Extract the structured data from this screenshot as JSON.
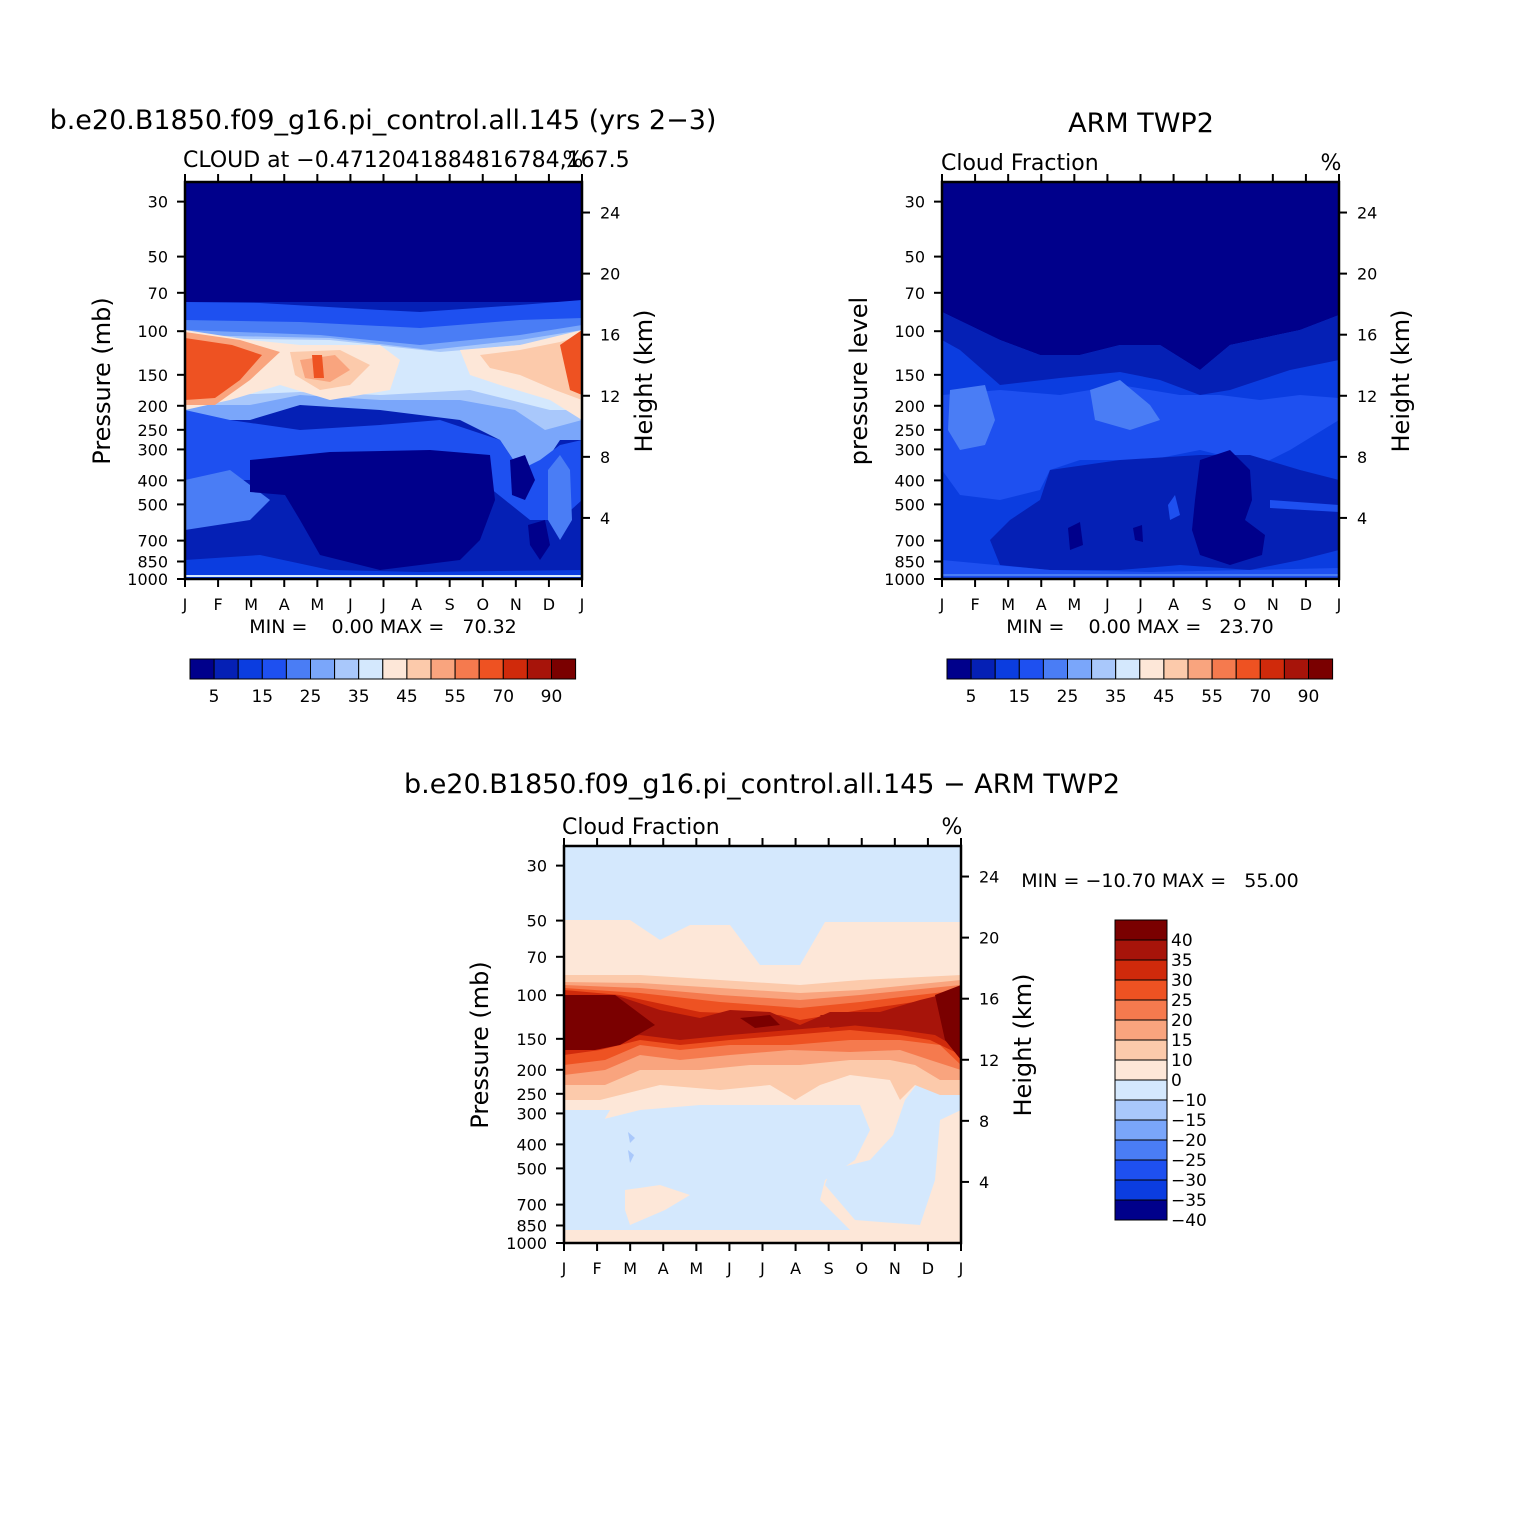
{
  "chart_data": [
    {
      "type": "heatmap",
      "title": "b.e20.B1850.f09_g16.pi_control.all.145 (yrs 2−3)",
      "subtitle_left": "CLOUD at −0.4712041884816784,167.5",
      "subtitle_right": "%",
      "ylabel": "Pressure (mb)",
      "y2label": "Height (km)",
      "y_ticks": [
        "30",
        "50",
        "70",
        "100",
        "150",
        "200",
        "250",
        "300",
        "400",
        "500",
        "700",
        "850",
        "1000"
      ],
      "y2_ticks": [
        "24",
        "20",
        "16",
        "12",
        "8",
        "4"
      ],
      "x_ticks": [
        "J",
        "F",
        "M",
        "A",
        "M",
        "J",
        "J",
        "A",
        "S",
        "O",
        "N",
        "D",
        "J"
      ],
      "stats": "MIN =    0.00 MAX =   70.32",
      "colorbar_labels": [
        "5",
        "15",
        "25",
        "35",
        "45",
        "55",
        "70",
        "90"
      ]
    },
    {
      "type": "heatmap",
      "title": "ARM TWP2",
      "subtitle_left": "Cloud Fraction",
      "subtitle_right": "%",
      "ylabel": "pressure level",
      "y2label": "Height (km)",
      "y_ticks": [
        "30",
        "50",
        "70",
        "100",
        "150",
        "200",
        "250",
        "300",
        "400",
        "500",
        "700",
        "850",
        "1000"
      ],
      "y2_ticks": [
        "24",
        "20",
        "16",
        "12",
        "8",
        "4"
      ],
      "x_ticks": [
        "J",
        "F",
        "M",
        "A",
        "M",
        "J",
        "J",
        "A",
        "S",
        "O",
        "N",
        "D",
        "J"
      ],
      "stats": "MIN =    0.00 MAX =   23.70",
      "colorbar_labels": [
        "5",
        "15",
        "25",
        "35",
        "45",
        "55",
        "70",
        "90"
      ]
    },
    {
      "type": "heatmap",
      "title": "b.e20.B1850.f09_g16.pi_control.all.145 − ARM TWP2",
      "subtitle_left": "Cloud Fraction",
      "subtitle_right": "%",
      "ylabel": "Pressure (mb)",
      "y2label": "Height (km)",
      "y_ticks": [
        "30",
        "50",
        "70",
        "100",
        "150",
        "200",
        "250",
        "300",
        "400",
        "500",
        "700",
        "850",
        "1000"
      ],
      "y2_ticks": [
        "24",
        "20",
        "16",
        "12",
        "8",
        "4"
      ],
      "x_ticks": [
        "J",
        "F",
        "M",
        "A",
        "M",
        "J",
        "J",
        "A",
        "S",
        "O",
        "N",
        "D",
        "J"
      ],
      "stats": "MIN = −10.70 MAX =   55.00",
      "colorbar_labels": [
        "40",
        "35",
        "30",
        "25",
        "20",
        "15",
        "10",
        "0",
        "−10",
        "−15",
        "−20",
        "−25",
        "−30",
        "−35",
        "−40"
      ]
    }
  ],
  "colors": {
    "seq_scale": [
      "#00008b",
      "#0520b5",
      "#0b3de0",
      "#1e50f0",
      "#4a7df5",
      "#7aa6fa",
      "#a9c8fb",
      "#d4e8fd",
      "#fde7d8",
      "#fccaab",
      "#f9a47e",
      "#f57a4e",
      "#ee5222",
      "#d02a0b",
      "#a7140a",
      "#7a0000"
    ],
    "diff_scale": [
      "#00008b",
      "#0b3de0",
      "#1e50f0",
      "#4a7df5",
      "#7aa6fa",
      "#a9c8fb",
      "#d4e8fd",
      "#fde7d8",
      "#fccaab",
      "#f9a47e",
      "#f57a4e",
      "#ee5222",
      "#d02a0b",
      "#a7140a",
      "#7a0000"
    ]
  }
}
